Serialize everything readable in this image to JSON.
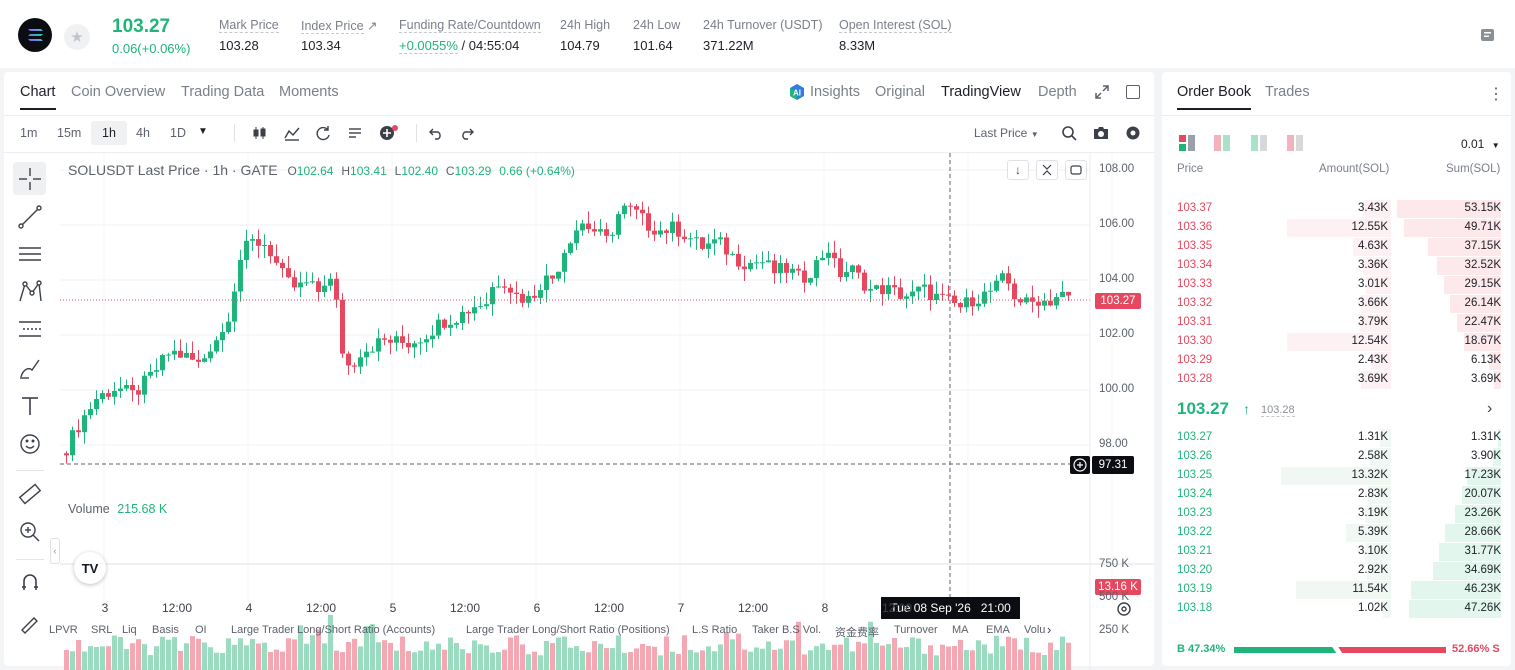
{
  "ticker": {
    "price": "103.27",
    "change": "0.06(+0.06%)",
    "stats": [
      {
        "label": "Mark Price",
        "value": "103.28"
      },
      {
        "label": "Index Price",
        "value": "103.34"
      },
      {
        "label": "Funding Rate/Countdown",
        "value_green": "+0.0055%",
        "value": "/ 04:55:04"
      },
      {
        "label": "24h High",
        "value": "104.79"
      },
      {
        "label": "24h Low",
        "value": "101.64"
      },
      {
        "label": "24h Turnover (USDT)",
        "value": "371.22M"
      },
      {
        "label": "Open Interest (SOL)",
        "value": "8.33M"
      }
    ]
  },
  "chart_tabs": [
    "Chart",
    "Coin Overview",
    "Trading Data",
    "Moments"
  ],
  "view_tabs": {
    "insights": "Insights",
    "original": "Original",
    "tradingview": "TradingView",
    "depth": "Depth"
  },
  "intervals": [
    "1m",
    "15m",
    "1h",
    "4h",
    "1D"
  ],
  "price_type": "Last Price",
  "legend": {
    "symbol": "SOLUSDT Last Price · 1h · GATE",
    "o_label": "O",
    "o": "102.64",
    "h_label": "H",
    "h": "103.41",
    "l_label": "L",
    "l": "102.40",
    "c_label": "C",
    "c": "103.29",
    "chg": "0.66 (+0.64%)"
  },
  "volume_legend": {
    "label": "Volume",
    "value": "215.68 K"
  },
  "price_axis": [
    "108.00",
    "106.00",
    "104.00",
    "102.00",
    "100.00",
    "98.00"
  ],
  "volume_axis": [
    "750 K",
    "500 K",
    "250 K"
  ],
  "last_price_tag": "103.27",
  "crosshair_price_tag": "97.31",
  "volume_tag": "13.16 K",
  "time_axis": [
    "3",
    "12:00",
    "4",
    "12:00",
    "5",
    "12:00",
    "6",
    "12:00",
    "7",
    "12:00",
    "8",
    "12:00"
  ],
  "crosshair_time": "Tue 08 Sep '26   21:00",
  "indicators": [
    "LPVR",
    "SRL",
    "Liq",
    "Basis",
    "OI",
    "Large Trader Long/Short Ratio (Accounts)",
    "Large Trader Long/Short Ratio (Positions)",
    "L.S Ratio",
    "Taker B.S Vol.",
    "资金费率",
    "Turnover",
    "MA",
    "EMA",
    "Volu"
  ],
  "chart_data": {
    "type": "candlestick",
    "symbol": "SOLUSDT",
    "interval": "1h",
    "ylim": [
      97,
      108.5
    ],
    "last_price": 103.27,
    "note_series": "hourly OHLC estimated from the rendered candles",
    "volume_ylim": [
      0,
      780000
    ]
  },
  "book": {
    "tabs": [
      "Order Book",
      "Trades"
    ],
    "precision": "0.01",
    "headers": [
      "Price",
      "Amount(SOL)",
      "Sum(SOL)"
    ],
    "asks": [
      [
        "103.37",
        "3.43K",
        "53.15K"
      ],
      [
        "103.36",
        "12.55K",
        "49.71K"
      ],
      [
        "103.35",
        "4.63K",
        "37.15K"
      ],
      [
        "103.34",
        "3.36K",
        "32.52K"
      ],
      [
        "103.33",
        "3.01K",
        "29.15K"
      ],
      [
        "103.32",
        "3.66K",
        "26.14K"
      ],
      [
        "103.31",
        "3.79K",
        "22.47K"
      ],
      [
        "103.30",
        "12.54K",
        "18.67K"
      ],
      [
        "103.29",
        "2.43K",
        "6.13K"
      ],
      [
        "103.28",
        "3.69K",
        "3.69K"
      ]
    ],
    "ask_sums": [
      53.15,
      49.71,
      37.15,
      32.52,
      29.15,
      26.14,
      22.47,
      18.67,
      6.13,
      3.69
    ],
    "ask_amounts": [
      3.43,
      12.55,
      4.63,
      3.36,
      3.01,
      3.66,
      3.79,
      12.54,
      2.43,
      3.69
    ],
    "mid_price": "103.27",
    "mid_arrow": "↑",
    "mid_mark": "103.28",
    "bids": [
      [
        "103.27",
        "1.31K",
        "1.31K"
      ],
      [
        "103.26",
        "2.58K",
        "3.90K"
      ],
      [
        "103.25",
        "13.32K",
        "17.23K"
      ],
      [
        "103.24",
        "2.83K",
        "20.07K"
      ],
      [
        "103.23",
        "3.19K",
        "23.26K"
      ],
      [
        "103.22",
        "5.39K",
        "28.66K"
      ],
      [
        "103.21",
        "3.10K",
        "31.77K"
      ],
      [
        "103.20",
        "2.92K",
        "34.69K"
      ],
      [
        "103.19",
        "11.54K",
        "46.23K"
      ],
      [
        "103.18",
        "1.02K",
        "47.26K"
      ]
    ],
    "bid_sums": [
      1.31,
      3.9,
      17.23,
      20.07,
      23.26,
      28.66,
      31.77,
      34.69,
      46.23,
      47.26
    ],
    "bid_amounts": [
      1.31,
      2.58,
      13.32,
      2.83,
      3.19,
      5.39,
      3.1,
      2.92,
      11.54,
      1.02
    ],
    "ratio": {
      "buy": "B 47.34%",
      "sell": "52.66% S",
      "buy_fraction": 0.4734
    }
  },
  "colors": {
    "up": "#1fb47a",
    "down": "#e5485f"
  }
}
